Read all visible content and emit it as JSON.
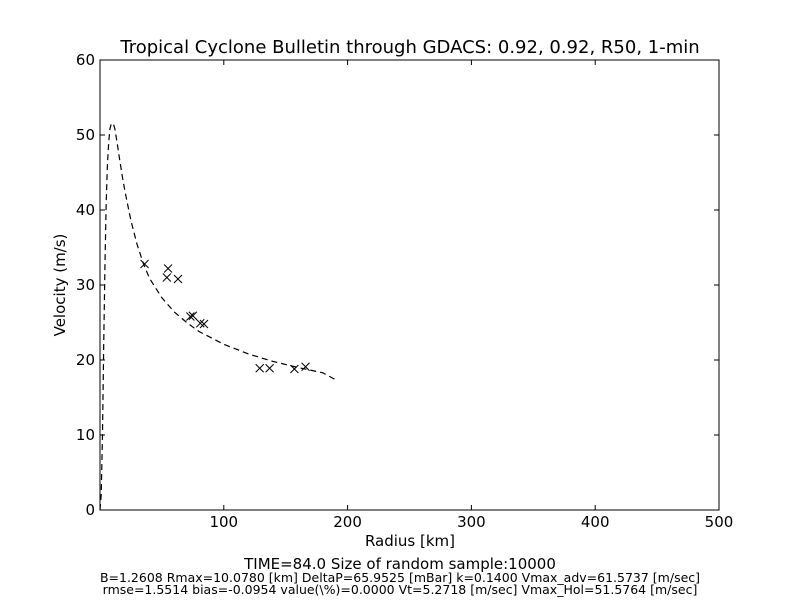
{
  "chart_data": {
    "type": "scatter",
    "title": "Tropical Cyclone Bulletin through GDACS: 0.92, 0.92, R50, 1-min",
    "xlabel": "Radius [km]",
    "ylabel": "Velocity (m/s)",
    "xlim": [
      0,
      500
    ],
    "ylim": [
      0,
      60
    ],
    "xticks": [
      100,
      200,
      300,
      400,
      500
    ],
    "yticks": [
      0,
      10,
      20,
      30,
      40,
      50,
      60
    ],
    "grid": false,
    "series": [
      {
        "style": "x-markers",
        "points": [
          [
            36,
            32.8
          ],
          [
            54,
            31.0
          ],
          [
            55,
            32.2
          ],
          [
            63,
            30.8
          ],
          [
            73,
            25.8
          ],
          [
            75,
            25.9
          ],
          [
            81,
            24.9
          ],
          [
            84,
            24.8
          ],
          [
            129,
            18.9
          ],
          [
            137,
            18.9
          ],
          [
            157,
            18.8
          ],
          [
            166,
            19.1
          ]
        ]
      },
      {
        "style": "dashed-line",
        "points": [
          [
            0,
            0
          ],
          [
            1,
            2
          ],
          [
            2,
            10
          ],
          [
            3,
            22
          ],
          [
            4,
            33
          ],
          [
            5,
            41
          ],
          [
            6,
            46
          ],
          [
            7,
            49
          ],
          [
            8,
            50.8
          ],
          [
            9,
            51.4
          ],
          [
            10,
            51.6
          ],
          [
            11,
            51.4
          ],
          [
            12,
            50.8
          ],
          [
            14,
            48.8
          ],
          [
            16,
            46.6
          ],
          [
            18,
            44.5
          ],
          [
            20,
            42.6
          ],
          [
            25,
            38.6
          ],
          [
            30,
            35.4
          ],
          [
            35,
            32.9
          ],
          [
            40,
            30.9
          ],
          [
            50,
            28.3
          ],
          [
            60,
            26.4
          ],
          [
            70,
            25.0
          ],
          [
            80,
            23.8
          ],
          [
            100,
            22.1
          ],
          [
            120,
            20.8
          ],
          [
            140,
            19.8
          ],
          [
            160,
            19.0
          ],
          [
            180,
            18.3
          ],
          [
            190,
            17.4
          ]
        ]
      }
    ]
  },
  "footer": {
    "line1": "TIME=84.0      Size of random sample:10000",
    "line2": "B=1.2608 Rmax=10.0780 [km]  DeltaP=65.9525 [mBar] k=0.1400 Vmax_adv=61.5737 [m/sec]",
    "line3": "rmse=1.5514 bias=-0.0954 value(\\%)=0.0000 Vt=5.2718 [m/sec] Vmax_Hol=51.5764 [m/sec]"
  }
}
